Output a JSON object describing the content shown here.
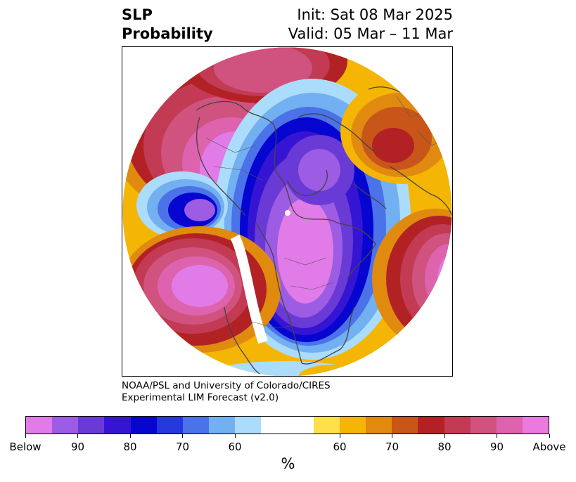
{
  "title": {
    "left": "SLP\nProbability",
    "init": "Init: Sat 08 Mar 2025",
    "valid": "Valid: 05 Mar – 11 Mar"
  },
  "credit": {
    "line1": "NOAA/PSL and University of Colorado/CIRES",
    "line2": "Experimental LIM Forecast (v2.0)"
  },
  "colorbar": {
    "colors": [
      "#e07be8",
      "#9c5ce3",
      "#6a3ad6",
      "#3515d3",
      "#0606d0",
      "#2438de",
      "#4b72e8",
      "#72b0f2",
      "#abdcfb",
      "#ffffff",
      "#ffffff",
      "#ffe04a",
      "#f4b505",
      "#e08a10",
      "#c95619",
      "#b22225",
      "#c23a54",
      "#d0527f",
      "#de63ae",
      "#e87ae0"
    ],
    "tick_labels": [
      "Below",
      "90",
      "80",
      "70",
      "60",
      "60",
      "70",
      "80",
      "90",
      "Above"
    ],
    "unit": "%"
  },
  "map": {
    "projection": "north polar stereographic",
    "variable": "SLP probability",
    "colors": {
      "above_strong": "#e07be8",
      "above_high": "#d0527f",
      "above_mid": "#b22225",
      "above_low": "#f4b505",
      "below_strong": "#9c5ce3",
      "below_high": "#0606d0",
      "below_mid": "#4b72e8",
      "below_low": "#abdcfb",
      "coast": "#444444"
    }
  }
}
